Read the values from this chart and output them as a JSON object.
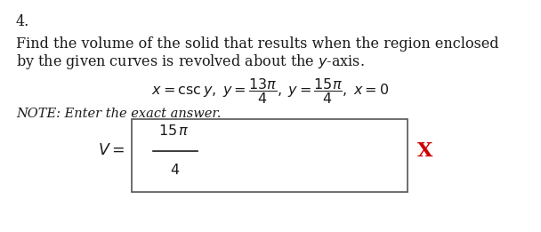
{
  "number": "4.",
  "line1": "Find the volume of the solid that results when the region enclosed",
  "line2": "by the given curves is revolved about the $y$-axis.",
  "curves_line": "$x = \\mathrm{csc}\\, y, \\; y = \\dfrac{13\\pi}{4}, \\; y = \\dfrac{15\\pi}{4}, \\; x = 0$",
  "note": "NOTE: Enter the exact answer.",
  "v_label": "$V = $",
  "ans_num": "$15\\,\\pi$",
  "ans_den": "$4$",
  "x_mark": "X",
  "bg_color": "#ffffff",
  "text_color": "#1a1a1a",
  "x_color": "#cc0000",
  "box_edge": "#555555",
  "font_size_main": 11.5,
  "font_size_small": 10.5
}
